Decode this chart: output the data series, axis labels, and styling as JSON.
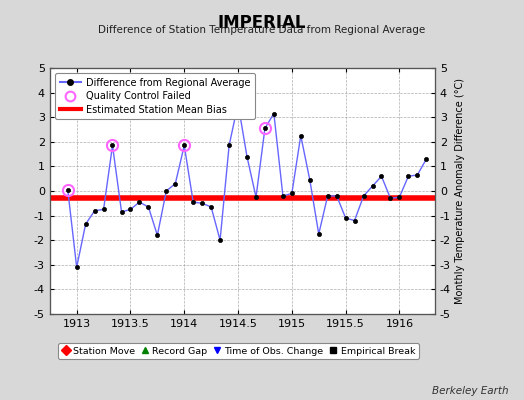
{
  "title": "IMPERIAL",
  "subtitle": "Difference of Station Temperature Data from Regional Average",
  "ylabel_right": "Monthly Temperature Anomaly Difference (°C)",
  "credit": "Berkeley Earth",
  "xlim": [
    1912.75,
    1916.33
  ],
  "ylim": [
    -5,
    5
  ],
  "xticks": [
    1913,
    1913.5,
    1914,
    1914.5,
    1915,
    1915.5,
    1916
  ],
  "yticks": [
    -5,
    -4,
    -3,
    -2,
    -1,
    0,
    1,
    2,
    3,
    4,
    5
  ],
  "bias_level": -0.3,
  "line_color": "#6666ff",
  "line_marker_color": "#000000",
  "bias_color": "#ff0000",
  "qc_fail_color": "#ff66ff",
  "background_color": "#d8d8d8",
  "plot_bg_color": "#ffffff",
  "x_data": [
    1912.917,
    1913.0,
    1913.083,
    1913.167,
    1913.25,
    1913.333,
    1913.417,
    1913.5,
    1913.583,
    1913.667,
    1913.75,
    1913.833,
    1913.917,
    1914.0,
    1914.083,
    1914.167,
    1914.25,
    1914.333,
    1914.417,
    1914.5,
    1914.583,
    1914.667,
    1914.75,
    1914.833,
    1914.917,
    1915.0,
    1915.083,
    1915.167,
    1915.25,
    1915.333,
    1915.417,
    1915.5,
    1915.583,
    1915.667,
    1915.75,
    1915.833,
    1915.917,
    1916.0,
    1916.083,
    1916.167,
    1916.25
  ],
  "y_data": [
    0.05,
    -3.1,
    -1.35,
    -0.8,
    -0.75,
    1.85,
    -0.85,
    -0.75,
    -0.45,
    -0.65,
    -1.8,
    0.0,
    0.3,
    1.85,
    -0.45,
    -0.5,
    -0.65,
    -2.0,
    1.85,
    3.55,
    1.4,
    -0.25,
    2.55,
    3.15,
    -0.2,
    -0.1,
    2.25,
    0.45,
    -1.75,
    -0.2,
    -0.2,
    -1.1,
    -1.2,
    -0.2,
    0.2,
    0.6,
    -0.3,
    -0.25,
    0.6,
    0.65,
    1.3
  ],
  "qc_fail_indices": [
    0,
    5,
    13,
    22
  ],
  "bottom_legend": [
    {
      "label": "Station Move",
      "color": "#ff0000",
      "marker": "D"
    },
    {
      "label": "Record Gap",
      "color": "#008000",
      "marker": "^"
    },
    {
      "label": "Time of Obs. Change",
      "color": "#0000ff",
      "marker": "v"
    },
    {
      "label": "Empirical Break",
      "color": "#000000",
      "marker": "s"
    }
  ]
}
